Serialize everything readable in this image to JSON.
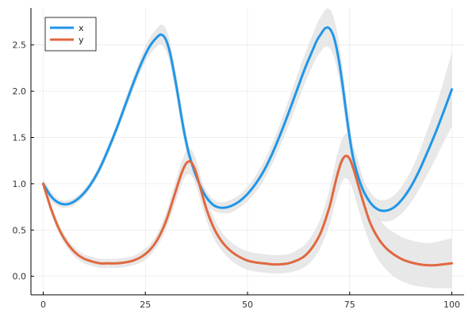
{
  "chart_data": {
    "type": "line",
    "title": "",
    "xlabel": "",
    "ylabel": "",
    "xlim": [
      -3,
      103
    ],
    "ylim": [
      -0.2,
      2.9
    ],
    "x_ticks": [
      0,
      25,
      50,
      75,
      100
    ],
    "y_ticks": [
      0.0,
      0.5,
      1.0,
      1.5,
      2.0,
      2.5
    ],
    "x_tick_labels": [
      "0",
      "25",
      "50",
      "75",
      "100"
    ],
    "y_tick_labels": [
      "0.0",
      "0.5",
      "1.0",
      "1.5",
      "2.0",
      "2.5"
    ],
    "grid": true,
    "legend_position": "top-left",
    "band_color": "#e4e4e4",
    "series": [
      {
        "name": "x",
        "color": "#1f96e8",
        "x": [
          0,
          2,
          4,
          6,
          8,
          10,
          12,
          14,
          16,
          18,
          20,
          22,
          24,
          26,
          28,
          29,
          30,
          31,
          32,
          33,
          34,
          35,
          36,
          38,
          40,
          42,
          44,
          46,
          48,
          50,
          52,
          54,
          56,
          58,
          60,
          62,
          64,
          66,
          67,
          68,
          69,
          70,
          71,
          72,
          73,
          74,
          75,
          76,
          78,
          80,
          82,
          84,
          86,
          88,
          90,
          92,
          94,
          96,
          98,
          100
        ],
        "values": [
          1.0,
          0.86,
          0.79,
          0.78,
          0.82,
          0.9,
          1.02,
          1.18,
          1.38,
          1.6,
          1.84,
          2.08,
          2.3,
          2.48,
          2.59,
          2.61,
          2.56,
          2.42,
          2.2,
          1.95,
          1.68,
          1.45,
          1.27,
          1.02,
          0.85,
          0.76,
          0.74,
          0.76,
          0.81,
          0.89,
          1.0,
          1.14,
          1.32,
          1.53,
          1.76,
          2.0,
          2.24,
          2.45,
          2.55,
          2.62,
          2.68,
          2.68,
          2.6,
          2.42,
          2.15,
          1.82,
          1.5,
          1.25,
          0.96,
          0.8,
          0.72,
          0.71,
          0.75,
          0.84,
          0.97,
          1.14,
          1.34,
          1.55,
          1.78,
          2.02
        ],
        "lower": [
          0.95,
          0.81,
          0.75,
          0.74,
          0.78,
          0.86,
          0.98,
          1.13,
          1.33,
          1.55,
          1.78,
          2.01,
          2.22,
          2.39,
          2.49,
          2.5,
          2.44,
          2.3,
          2.08,
          1.83,
          1.57,
          1.35,
          1.18,
          0.94,
          0.78,
          0.7,
          0.68,
          0.69,
          0.74,
          0.81,
          0.91,
          1.04,
          1.21,
          1.41,
          1.62,
          1.85,
          2.08,
          2.28,
          2.37,
          2.43,
          2.48,
          2.47,
          2.39,
          2.22,
          1.96,
          1.65,
          1.35,
          1.12,
          0.84,
          0.69,
          0.61,
          0.59,
          0.62,
          0.69,
          0.8,
          0.94,
          1.1,
          1.27,
          1.45,
          1.62
        ],
        "upper": [
          1.05,
          0.91,
          0.83,
          0.82,
          0.86,
          0.94,
          1.06,
          1.23,
          1.43,
          1.65,
          1.9,
          2.15,
          2.38,
          2.57,
          2.69,
          2.72,
          2.68,
          2.54,
          2.32,
          2.07,
          1.79,
          1.55,
          1.36,
          1.1,
          0.92,
          0.82,
          0.8,
          0.83,
          0.88,
          0.97,
          1.09,
          1.24,
          1.43,
          1.65,
          1.9,
          2.15,
          2.4,
          2.62,
          2.73,
          2.81,
          2.88,
          2.89,
          2.81,
          2.62,
          2.34,
          1.99,
          1.65,
          1.38,
          1.08,
          0.91,
          0.83,
          0.83,
          0.88,
          0.99,
          1.14,
          1.34,
          1.58,
          1.83,
          2.11,
          2.42
        ]
      },
      {
        "name": "y",
        "color": "#e0683f",
        "x": [
          0,
          2,
          4,
          6,
          8,
          10,
          12,
          14,
          16,
          18,
          20,
          22,
          24,
          26,
          28,
          30,
          32,
          33,
          34,
          35,
          36,
          37,
          38,
          40,
          42,
          44,
          46,
          48,
          50,
          52,
          54,
          56,
          58,
          60,
          62,
          64,
          66,
          68,
          70,
          71,
          72,
          73,
          74,
          75,
          76,
          78,
          80,
          82,
          84,
          86,
          88,
          90,
          92,
          94,
          96,
          98,
          100
        ],
        "values": [
          1.0,
          0.72,
          0.5,
          0.35,
          0.25,
          0.19,
          0.16,
          0.14,
          0.14,
          0.14,
          0.15,
          0.17,
          0.21,
          0.28,
          0.4,
          0.59,
          0.86,
          1.0,
          1.13,
          1.22,
          1.24,
          1.17,
          1.03,
          0.72,
          0.5,
          0.36,
          0.27,
          0.21,
          0.17,
          0.15,
          0.14,
          0.13,
          0.13,
          0.14,
          0.17,
          0.22,
          0.32,
          0.48,
          0.74,
          0.92,
          1.1,
          1.24,
          1.3,
          1.27,
          1.15,
          0.85,
          0.58,
          0.41,
          0.3,
          0.23,
          0.18,
          0.15,
          0.13,
          0.12,
          0.12,
          0.13,
          0.14
        ],
        "lower": [
          0.95,
          0.67,
          0.45,
          0.3,
          0.2,
          0.14,
          0.11,
          0.09,
          0.09,
          0.09,
          0.1,
          0.12,
          0.15,
          0.22,
          0.33,
          0.5,
          0.75,
          0.88,
          1.01,
          1.09,
          1.1,
          1.03,
          0.89,
          0.6,
          0.39,
          0.26,
          0.17,
          0.11,
          0.07,
          0.05,
          0.04,
          0.03,
          0.03,
          0.04,
          0.06,
          0.1,
          0.18,
          0.32,
          0.55,
          0.71,
          0.88,
          1.01,
          1.06,
          1.02,
          0.9,
          0.6,
          0.35,
          0.18,
          0.07,
          -0.01,
          -0.06,
          -0.09,
          -0.11,
          -0.12,
          -0.13,
          -0.13,
          -0.13
        ],
        "upper": [
          1.05,
          0.77,
          0.55,
          0.4,
          0.3,
          0.24,
          0.21,
          0.19,
          0.19,
          0.19,
          0.2,
          0.22,
          0.27,
          0.34,
          0.47,
          0.68,
          0.97,
          1.12,
          1.25,
          1.35,
          1.38,
          1.31,
          1.17,
          0.84,
          0.61,
          0.46,
          0.37,
          0.31,
          0.27,
          0.25,
          0.24,
          0.23,
          0.23,
          0.24,
          0.28,
          0.34,
          0.46,
          0.64,
          0.93,
          1.13,
          1.32,
          1.47,
          1.54,
          1.52,
          1.4,
          1.1,
          0.81,
          0.64,
          0.53,
          0.47,
          0.42,
          0.39,
          0.37,
          0.36,
          0.37,
          0.39,
          0.41
        ]
      }
    ]
  }
}
